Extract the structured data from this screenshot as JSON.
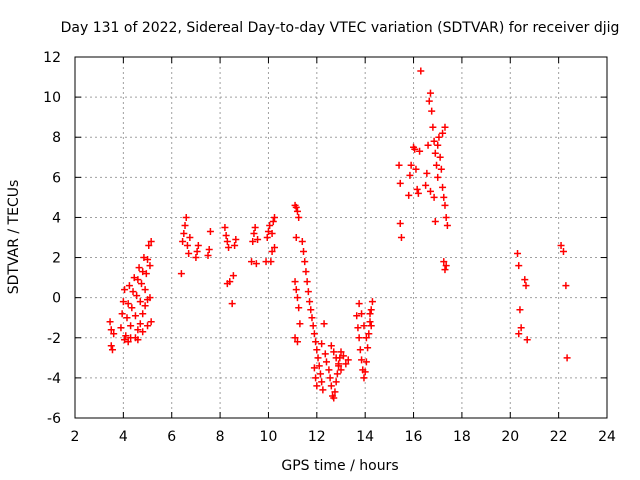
{
  "chart_data": {
    "type": "scatter",
    "title": "Day 131 of 2022, Sidereal Day-to-day VTEC variation (SDTVAR) for receiver djig",
    "xlabel": "GPS time / hours",
    "ylabel": "SDTVAR / TECUs",
    "xlim": [
      2,
      24
    ],
    "ylim": [
      -6,
      12
    ],
    "xticks": [
      "2",
      "4",
      "6",
      "8",
      "10",
      "12",
      "14",
      "16",
      "18",
      "20",
      "22",
      "24"
    ],
    "yticks": [
      "-6",
      "-4",
      "-2",
      "0",
      "2",
      "4",
      "6",
      "8",
      "10",
      "12"
    ],
    "grid": true,
    "marker": "+",
    "color": "#ff0000",
    "series": [
      {
        "name": "SDTVAR",
        "points": [
          [
            3.45,
            -1.2
          ],
          [
            3.5,
            -1.6
          ],
          [
            3.5,
            -2.4
          ],
          [
            3.55,
            -2.6
          ],
          [
            3.6,
            -1.8
          ],
          [
            3.9,
            -1.5
          ],
          [
            3.95,
            -0.8
          ],
          [
            4.0,
            -0.2
          ],
          [
            4.05,
            0.4
          ],
          [
            4.1,
            -1.9
          ],
          [
            4.15,
            -1.0
          ],
          [
            4.2,
            -0.3
          ],
          [
            4.25,
            0.6
          ],
          [
            4.3,
            -1.4
          ],
          [
            4.35,
            -0.5
          ],
          [
            4.4,
            0.3
          ],
          [
            4.45,
            1.0
          ],
          [
            4.5,
            -0.9
          ],
          [
            4.55,
            0.1
          ],
          [
            4.6,
            0.9
          ],
          [
            4.65,
            1.5
          ],
          [
            4.7,
            -0.2
          ],
          [
            4.75,
            0.7
          ],
          [
            4.8,
            1.3
          ],
          [
            4.85,
            2.0
          ],
          [
            4.9,
            0.4
          ],
          [
            4.95,
            1.2
          ],
          [
            5.0,
            1.9
          ],
          [
            5.05,
            2.6
          ],
          [
            5.1,
            1.6
          ],
          [
            5.15,
            2.8
          ],
          [
            4.5,
            -2.0
          ],
          [
            4.6,
            -1.6
          ],
          [
            4.7,
            -1.3
          ],
          [
            4.8,
            -0.8
          ],
          [
            4.9,
            -0.4
          ],
          [
            5.0,
            -0.1
          ],
          [
            5.1,
            0.0
          ],
          [
            4.6,
            -2.1
          ],
          [
            4.8,
            -1.7
          ],
          [
            5.0,
            -1.4
          ],
          [
            5.15,
            -1.2
          ],
          [
            4.05,
            -2.1
          ],
          [
            4.2,
            -2.2
          ],
          [
            4.3,
            -2.0
          ],
          [
            6.4,
            1.2
          ],
          [
            6.45,
            2.8
          ],
          [
            6.5,
            3.2
          ],
          [
            6.55,
            3.6
          ],
          [
            6.6,
            4.0
          ],
          [
            6.65,
            2.6
          ],
          [
            6.7,
            2.2
          ],
          [
            6.75,
            3.0
          ],
          [
            7.0,
            2.0
          ],
          [
            7.05,
            2.3
          ],
          [
            7.1,
            2.6
          ],
          [
            7.5,
            2.1
          ],
          [
            7.55,
            2.4
          ],
          [
            7.6,
            3.3
          ],
          [
            8.2,
            3.5
          ],
          [
            8.25,
            3.1
          ],
          [
            8.3,
            2.8
          ],
          [
            8.35,
            2.5
          ],
          [
            8.3,
            0.7
          ],
          [
            8.4,
            0.8
          ],
          [
            8.5,
            -0.3
          ],
          [
            8.55,
            1.1
          ],
          [
            8.6,
            2.6
          ],
          [
            8.65,
            2.9
          ],
          [
            9.3,
            1.8
          ],
          [
            9.35,
            2.8
          ],
          [
            9.4,
            3.2
          ],
          [
            9.45,
            3.5
          ],
          [
            9.5,
            1.7
          ],
          [
            9.55,
            2.9
          ],
          [
            9.9,
            1.8
          ],
          [
            9.95,
            3.0
          ],
          [
            10.0,
            3.3
          ],
          [
            10.05,
            3.6
          ],
          [
            10.1,
            1.8
          ],
          [
            10.15,
            2.3
          ],
          [
            10.2,
            3.8
          ],
          [
            10.25,
            4.0
          ],
          [
            10.15,
            3.2
          ],
          [
            10.25,
            2.5
          ],
          [
            11.1,
            4.6
          ],
          [
            11.15,
            4.5
          ],
          [
            11.2,
            4.3
          ],
          [
            11.25,
            4.0
          ],
          [
            11.15,
            3.0
          ],
          [
            11.1,
            0.8
          ],
          [
            11.15,
            0.4
          ],
          [
            11.2,
            0.0
          ],
          [
            11.25,
            -0.5
          ],
          [
            11.1,
            -2.0
          ],
          [
            11.2,
            -2.2
          ],
          [
            11.3,
            -1.3
          ],
          [
            11.4,
            2.8
          ],
          [
            11.45,
            2.3
          ],
          [
            11.5,
            1.8
          ],
          [
            11.55,
            1.3
          ],
          [
            11.6,
            0.8
          ],
          [
            11.65,
            0.3
          ],
          [
            11.7,
            -0.2
          ],
          [
            11.75,
            -0.6
          ],
          [
            11.8,
            -1.0
          ],
          [
            11.85,
            -1.4
          ],
          [
            11.9,
            -1.8
          ],
          [
            11.95,
            -2.2
          ],
          [
            12.0,
            -2.6
          ],
          [
            12.05,
            -3.0
          ],
          [
            12.1,
            -3.4
          ],
          [
            12.15,
            -3.8
          ],
          [
            12.2,
            -4.2
          ],
          [
            12.25,
            -4.6
          ],
          [
            11.9,
            -3.5
          ],
          [
            11.95,
            -4.0
          ],
          [
            12.0,
            -4.4
          ],
          [
            12.3,
            -1.3
          ],
          [
            12.2,
            -2.3
          ],
          [
            12.35,
            -2.8
          ],
          [
            12.4,
            -3.2
          ],
          [
            12.5,
            -3.6
          ],
          [
            12.55,
            -4.0
          ],
          [
            12.6,
            -4.4
          ],
          [
            12.65,
            -4.9
          ],
          [
            12.7,
            -5.0
          ],
          [
            12.75,
            -4.7
          ],
          [
            12.8,
            -4.2
          ],
          [
            12.85,
            -3.8
          ],
          [
            12.9,
            -3.4
          ],
          [
            12.95,
            -3.0
          ],
          [
            13.0,
            -2.7
          ],
          [
            12.6,
            -2.4
          ],
          [
            12.7,
            -2.7
          ],
          [
            12.8,
            -3.0
          ],
          [
            12.9,
            -3.3
          ],
          [
            13.0,
            -3.6
          ],
          [
            13.2,
            -3.3
          ],
          [
            13.3,
            -3.1
          ],
          [
            13.1,
            -2.9
          ],
          [
            13.65,
            -0.9
          ],
          [
            13.7,
            -1.5
          ],
          [
            13.75,
            -2.0
          ],
          [
            13.8,
            -2.6
          ],
          [
            13.85,
            -3.1
          ],
          [
            13.9,
            -3.6
          ],
          [
            13.95,
            -4.0
          ],
          [
            14.0,
            -3.7
          ],
          [
            14.05,
            -3.2
          ],
          [
            14.1,
            -2.5
          ],
          [
            14.15,
            -1.8
          ],
          [
            14.2,
            -1.2
          ],
          [
            14.25,
            -0.6
          ],
          [
            14.3,
            -0.2
          ],
          [
            13.75,
            -0.3
          ],
          [
            13.85,
            -0.8
          ],
          [
            13.95,
            -1.4
          ],
          [
            14.05,
            -2.0
          ],
          [
            14.2,
            -0.8
          ],
          [
            14.25,
            -1.4
          ],
          [
            15.4,
            6.6
          ],
          [
            15.45,
            5.7
          ],
          [
            15.45,
            3.7
          ],
          [
            15.5,
            3.0
          ],
          [
            15.8,
            5.1
          ],
          [
            15.85,
            6.1
          ],
          [
            15.9,
            6.6
          ],
          [
            16.0,
            7.5
          ],
          [
            16.05,
            7.4
          ],
          [
            16.1,
            6.4
          ],
          [
            16.15,
            5.4
          ],
          [
            16.2,
            5.2
          ],
          [
            16.25,
            7.3
          ],
          [
            16.3,
            11.3
          ],
          [
            16.5,
            5.6
          ],
          [
            16.55,
            6.2
          ],
          [
            16.6,
            7.6
          ],
          [
            16.65,
            9.8
          ],
          [
            16.7,
            10.2
          ],
          [
            16.75,
            9.3
          ],
          [
            16.8,
            8.5
          ],
          [
            16.85,
            7.8
          ],
          [
            16.9,
            7.2
          ],
          [
            16.95,
            6.6
          ],
          [
            17.0,
            6.0
          ],
          [
            16.7,
            5.3
          ],
          [
            16.85,
            5.0
          ],
          [
            16.9,
            3.8
          ],
          [
            17.0,
            7.6
          ],
          [
            17.05,
            8.0
          ],
          [
            17.1,
            7.0
          ],
          [
            17.15,
            6.4
          ],
          [
            17.2,
            5.5
          ],
          [
            17.25,
            5.0
          ],
          [
            17.3,
            4.6
          ],
          [
            17.35,
            4.0
          ],
          [
            17.4,
            3.6
          ],
          [
            17.2,
            8.2
          ],
          [
            17.3,
            8.5
          ],
          [
            17.25,
            1.8
          ],
          [
            17.3,
            1.4
          ],
          [
            17.35,
            1.6
          ],
          [
            20.3,
            2.2
          ],
          [
            20.35,
            1.6
          ],
          [
            20.4,
            -0.6
          ],
          [
            20.45,
            -1.5
          ],
          [
            20.35,
            -1.8
          ],
          [
            20.6,
            0.9
          ],
          [
            20.65,
            0.6
          ],
          [
            20.7,
            -2.1
          ],
          [
            22.1,
            2.6
          ],
          [
            22.2,
            2.3
          ],
          [
            22.3,
            0.6
          ],
          [
            22.35,
            -3.0
          ]
        ]
      }
    ]
  }
}
